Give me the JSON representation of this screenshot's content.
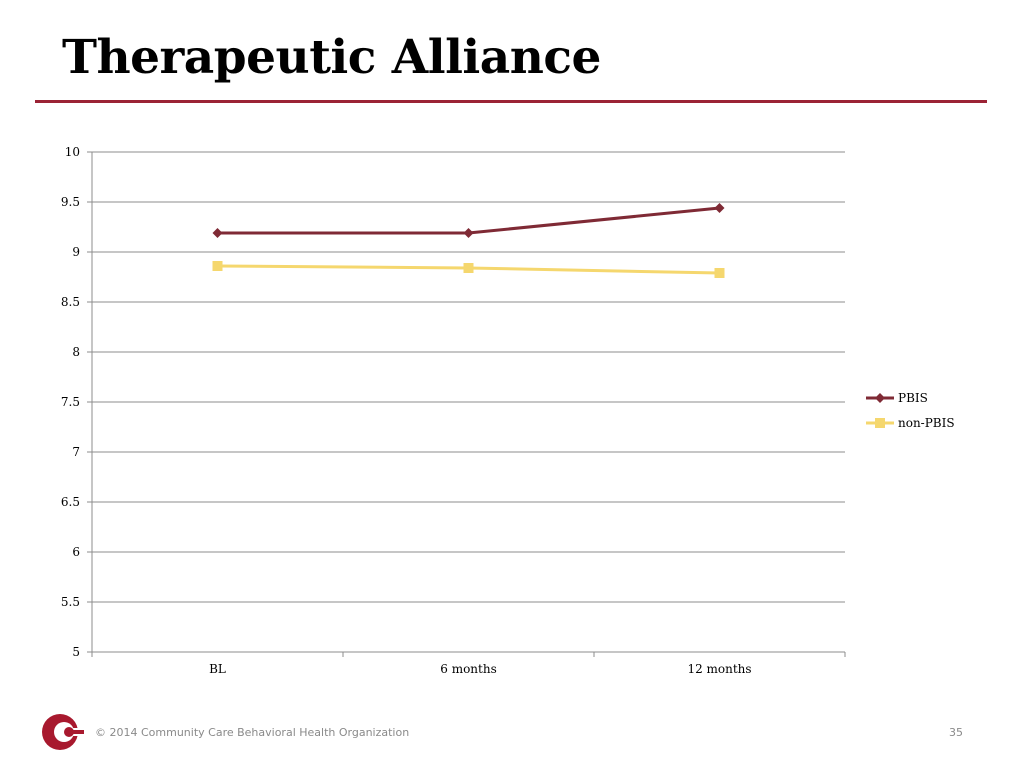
{
  "slide": {
    "title": "Therapeutic Alliance",
    "rule_color": "#9b2335"
  },
  "chart_data": {
    "type": "line",
    "title": "",
    "xlabel": "",
    "ylabel": "",
    "categories": [
      "BL",
      "6 months",
      "12 months"
    ],
    "ylim": [
      5,
      10
    ],
    "yticks": [
      "5",
      "5.5",
      "6",
      "6.5",
      "7",
      "7.5",
      "8",
      "8.5",
      "9",
      "9.5",
      "10"
    ],
    "grid": true,
    "legend_position": "right",
    "series": [
      {
        "name": "PBIS",
        "values": [
          9.19,
          9.19,
          9.44
        ],
        "color": "#7f2a35",
        "marker": "diamond"
      },
      {
        "name": "non-PBIS",
        "values": [
          8.86,
          8.84,
          8.79
        ],
        "color": "#f5d76e",
        "marker": "square"
      }
    ]
  },
  "footer": {
    "copyright": "© 2014 Community Care Behavioral Health Organization",
    "page_number": "35",
    "logo_icon": "community-care-logo-icon",
    "logo_color": "#a8192e"
  }
}
